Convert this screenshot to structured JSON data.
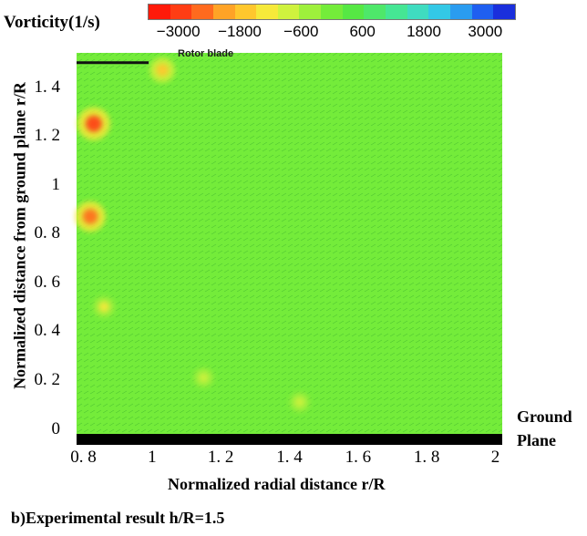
{
  "colorbar": {
    "title": "Vorticity(1/s)",
    "ticks": [
      "−3000",
      "−1800",
      "−600",
      "600",
      "1800",
      "3000"
    ],
    "tick_values": [
      -3000,
      -1800,
      -600,
      600,
      1800,
      3000
    ],
    "range": [
      -3600,
      3600
    ],
    "colors": [
      "#ff1a0a",
      "#ff3d14",
      "#ff6a1e",
      "#ffa326",
      "#ffc72d",
      "#f6e93a",
      "#cff23e",
      "#9ef03c",
      "#74ec3a",
      "#56e844",
      "#4ee86a",
      "#45e694",
      "#3fdcc0",
      "#33c8e6",
      "#2a9cf0",
      "#1f5ff0",
      "#1a2fdc"
    ]
  },
  "annotations": {
    "rotor_blade": "Rotor blade",
    "ground_line1": "Ground",
    "ground_line2": "Plane"
  },
  "caption": "b)Experimental result h/R=1.5",
  "chart_data": {
    "type": "heatmap",
    "title": "",
    "xlabel": "Normalized radial distance r/R",
    "ylabel": "Normalized distance from ground plane r/R",
    "xlim": [
      0.78,
      2.02
    ],
    "ylim": [
      -0.02,
      1.54
    ],
    "x_ticks": [
      0.8,
      1,
      1.2,
      1.4,
      1.6,
      1.8,
      2
    ],
    "x_tick_labels": [
      "0. 8",
      "1",
      "1. 2",
      "1. 4",
      "1. 6",
      "1. 8",
      "2"
    ],
    "y_ticks": [
      0,
      0.2,
      0.4,
      0.6,
      0.8,
      1,
      1.2,
      1.4
    ],
    "y_tick_labels": [
      "0",
      "0. 2",
      "0. 4",
      "0. 6",
      "0. 8",
      "1",
      "1. 2",
      "1. 4"
    ],
    "background_vorticity": 0,
    "rotor_blade": {
      "x": [
        0.78,
        0.99
      ],
      "y": 1.5
    },
    "vortex_cores": [
      {
        "x": 1.03,
        "y": 1.47,
        "vorticity": -1800
      },
      {
        "x": 0.83,
        "y": 1.25,
        "vorticity": -3000
      },
      {
        "x": 0.82,
        "y": 0.87,
        "vorticity": -2600
      },
      {
        "x": 0.86,
        "y": 0.5,
        "vorticity": -1200
      },
      {
        "x": 1.15,
        "y": 0.21,
        "vorticity": -900
      },
      {
        "x": 1.43,
        "y": 0.11,
        "vorticity": -900
      }
    ]
  }
}
